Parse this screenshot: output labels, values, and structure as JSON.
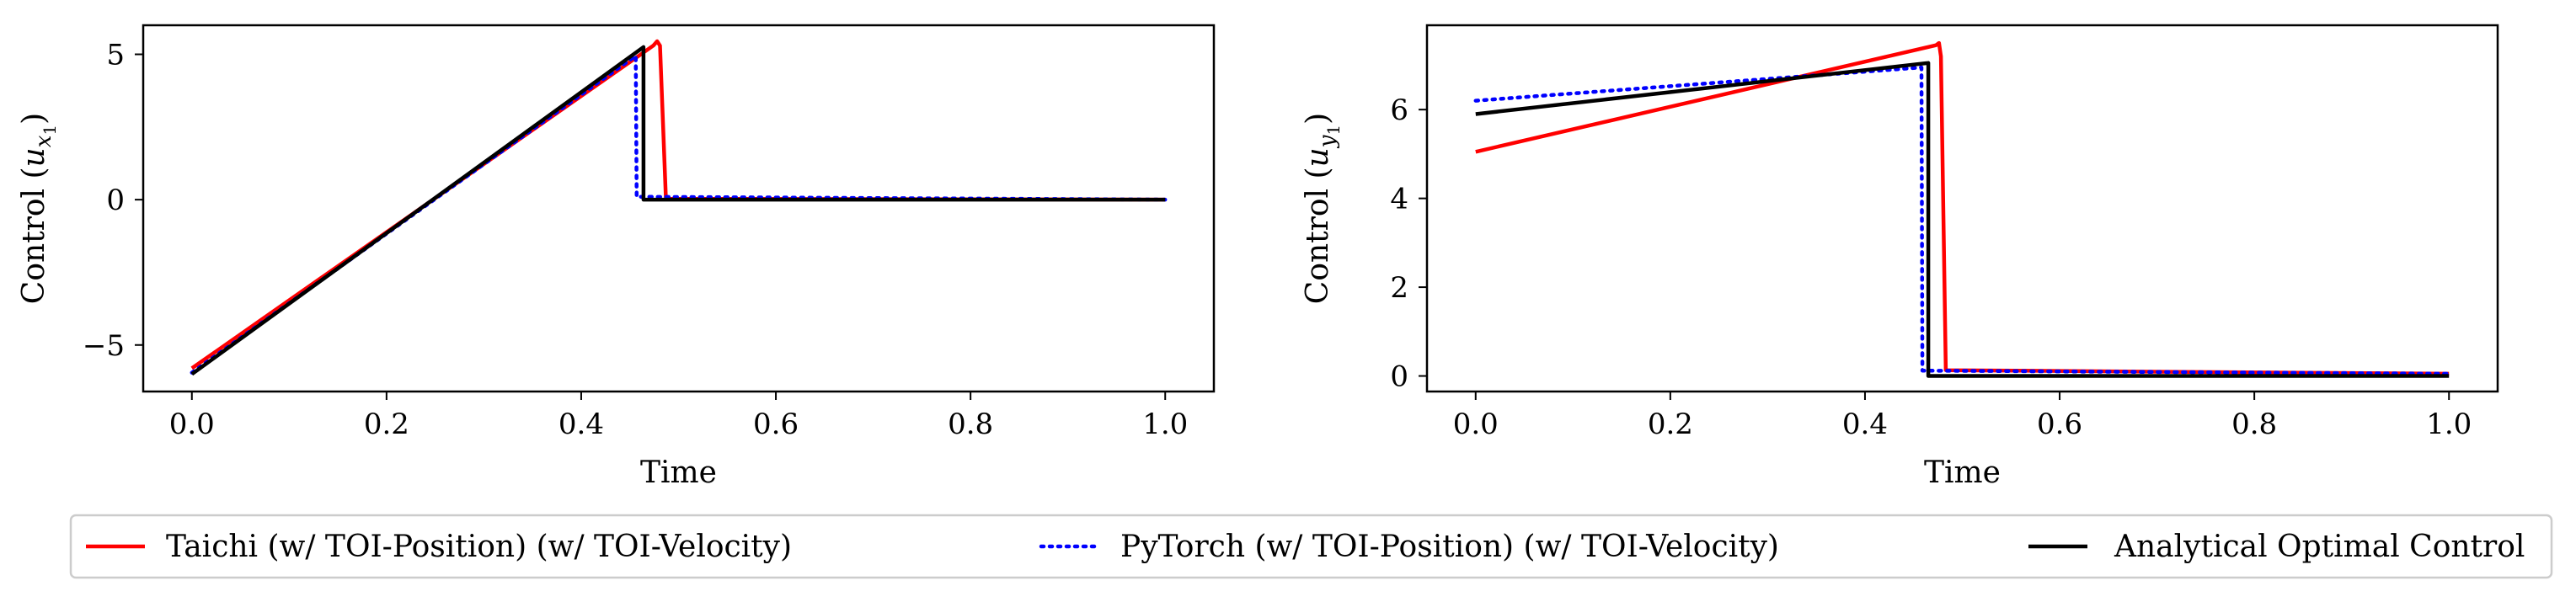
{
  "colors": {
    "taichi": "#ff0000",
    "pytorch": "#0000ff",
    "analytical": "#000000",
    "legend_border": "#cccccc"
  },
  "legend": {
    "items": [
      {
        "label": "Taichi (w/ TOI-Position) (w/ TOI-Velocity)",
        "style": "solid",
        "color": "#ff0000"
      },
      {
        "label": "PyTorch (w/ TOI-Position) (w/ TOI-Velocity)",
        "style": "dotted",
        "color": "#0000ff"
      },
      {
        "label": "Analytical Optimal Control",
        "style": "solid",
        "color": "#000000"
      }
    ]
  },
  "chart_data": [
    {
      "type": "line",
      "title": "",
      "xlabel": "Time",
      "ylabel_main": "Control (",
      "ylabel_var": "u",
      "ylabel_sub": "x",
      "ylabel_subsub": "1",
      "ylabel_close": ")",
      "xlim": [
        -0.05,
        1.05
      ],
      "ylim": [
        -6.6,
        6.0
      ],
      "xticks": [
        0.0,
        0.2,
        0.4,
        0.6,
        0.8,
        1.0
      ],
      "xtick_labels": [
        "0.0",
        "0.2",
        "0.4",
        "0.6",
        "0.8",
        "1.0"
      ],
      "yticks": [
        -5,
        0,
        5
      ],
      "ytick_labels": [
        "−5",
        "0",
        "5"
      ],
      "series": [
        {
          "name": "Taichi (w/ TOI-Position) (w/ TOI-Velocity)",
          "style": "solid",
          "color": "#ff0000",
          "x": [
            0.0,
            0.474,
            0.478,
            0.481,
            0.487,
            1.0
          ],
          "y": [
            -5.8,
            5.3,
            5.45,
            5.3,
            0.03,
            0.0
          ]
        },
        {
          "name": "PyTorch (w/ TOI-Position) (w/ TOI-Velocity)",
          "style": "dotted",
          "color": "#0000ff",
          "x": [
            0.0,
            0.456,
            0.457,
            1.0
          ],
          "y": [
            -5.95,
            4.95,
            0.1,
            0.0
          ]
        },
        {
          "name": "Analytical Optimal Control",
          "style": "solid",
          "color": "#000000",
          "x": [
            0.0,
            0.464,
            0.464,
            1.0
          ],
          "y": [
            -6.0,
            5.25,
            0.0,
            0.0
          ]
        }
      ]
    },
    {
      "type": "line",
      "title": "",
      "xlabel": "Time",
      "ylabel_main": "Control (",
      "ylabel_var": "u",
      "ylabel_sub": "y",
      "ylabel_subsub": "1",
      "ylabel_close": ")",
      "xlim": [
        -0.05,
        1.05
      ],
      "ylim": [
        -0.35,
        7.9
      ],
      "xticks": [
        0.0,
        0.2,
        0.4,
        0.6,
        0.8,
        1.0
      ],
      "xtick_labels": [
        "0.0",
        "0.2",
        "0.4",
        "0.6",
        "0.8",
        "1.0"
      ],
      "yticks": [
        0,
        2,
        4,
        6
      ],
      "ytick_labels": [
        "0",
        "2",
        "4",
        "6"
      ],
      "series": [
        {
          "name": "Taichi (w/ TOI-Position) (w/ TOI-Velocity)",
          "style": "solid",
          "color": "#ff0000",
          "x": [
            0.0,
            0.473,
            0.476,
            0.478,
            0.483,
            1.0
          ],
          "y": [
            5.05,
            7.45,
            7.5,
            7.2,
            0.13,
            0.05
          ]
        },
        {
          "name": "PyTorch (w/ TOI-Position) (w/ TOI-Velocity)",
          "style": "dotted",
          "color": "#0000ff",
          "x": [
            0.0,
            0.458,
            0.459,
            1.0
          ],
          "y": [
            6.2,
            6.95,
            0.12,
            0.05
          ]
        },
        {
          "name": "Analytical Optimal Control",
          "style": "solid",
          "color": "#000000",
          "x": [
            0.0,
            0.465,
            0.465,
            1.0
          ],
          "y": [
            5.9,
            7.05,
            0.0,
            0.0
          ]
        }
      ]
    }
  ]
}
